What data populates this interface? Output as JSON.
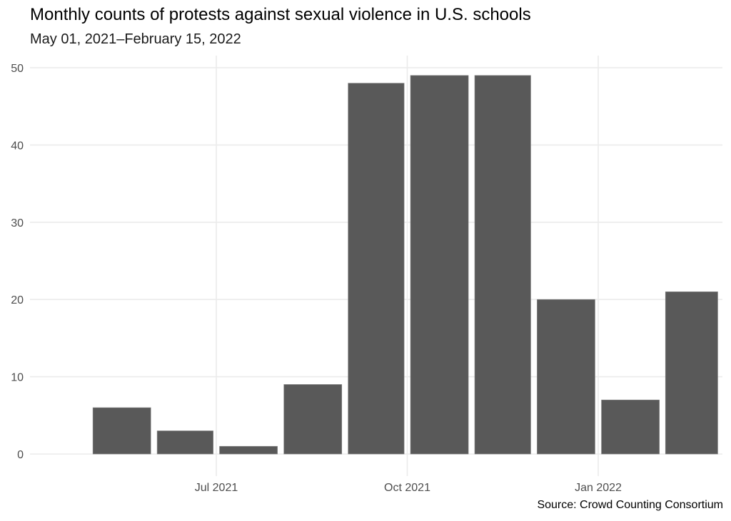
{
  "chart_data": {
    "type": "bar",
    "title": "Monthly counts of protests against sexual violence in U.S. schools",
    "subtitle": "May 01, 2021–February 15, 2022",
    "caption": "Source: Crowd Counting Consortium",
    "xlabel": "",
    "ylabel": "",
    "categories": [
      "2021-05",
      "2021-06",
      "2021-07",
      "2021-08",
      "2021-09",
      "2021-10",
      "2021-11",
      "2021-12",
      "2022-01",
      "2022-02"
    ],
    "values": [
      6,
      3,
      1,
      9,
      48,
      49,
      49,
      20,
      7,
      21
    ],
    "x_ticks": [
      {
        "date": "2021-07-01",
        "label": "Jul 2021"
      },
      {
        "date": "2021-10-01",
        "label": "Oct 2021"
      },
      {
        "date": "2022-01-01",
        "label": "Jan 2022"
      }
    ],
    "y_ticks": [
      0,
      10,
      20,
      30,
      40,
      50
    ],
    "ylim": [
      0,
      51.5
    ],
    "grid": true,
    "bar_color": "#595959",
    "grid_color": "#ebebeb"
  }
}
